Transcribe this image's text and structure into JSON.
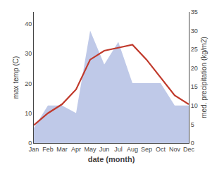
{
  "chart_data": {
    "type": "line",
    "xlabel": "date (month)",
    "ylabel": "max temp (C)",
    "y2label": "med. precipitation (kg/m2)",
    "categories": [
      "Jan",
      "Feb",
      "Mar",
      "Apr",
      "May",
      "Jun",
      "Jul",
      "Aug",
      "Sep",
      "Oct",
      "Nov",
      "Dec"
    ],
    "series": [
      {
        "type": "area",
        "axis": "y2",
        "color": "#bfc9e8",
        "values": [
          4,
          10,
          10,
          8,
          30,
          21,
          27,
          16,
          16,
          16,
          10,
          10
        ]
      },
      {
        "type": "line",
        "color": "#c0392b",
        "values": [
          6,
          10,
          13,
          18,
          28,
          31,
          32,
          33,
          28,
          22,
          16,
          13
        ]
      }
    ],
    "ylim": [
      0,
      44
    ],
    "yticks": [
      0,
      10,
      20,
      30,
      40
    ],
    "y2lim": [
      0,
      35
    ],
    "y2ticks": [
      0,
      5,
      10,
      15,
      20,
      25,
      30,
      35
    ],
    "grid": false
  }
}
